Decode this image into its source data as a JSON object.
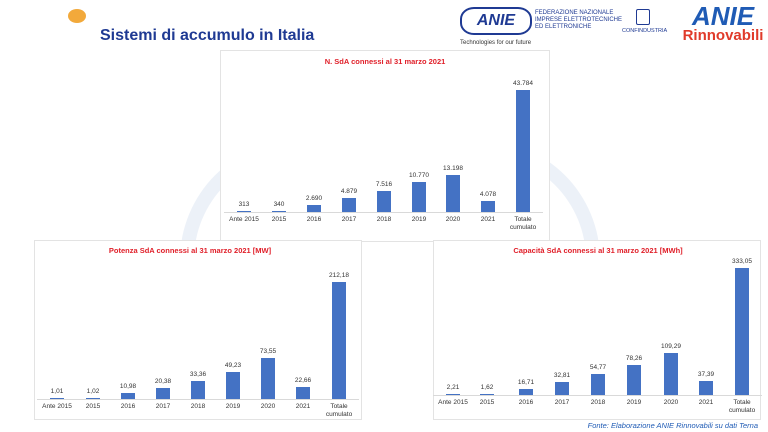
{
  "header": {
    "title": "Sistemi di accumulo in Italia",
    "logos": {
      "anie_federazione": "ANIE",
      "federazione_text": "FEDERAZIONE NAZIONALE IMPRESE ELETTROTECNICHE ED ELETTRONICHE",
      "tagline": "Technologies for our future",
      "confindustria": "CONFINDUSTRIA",
      "anie_rinnovabili": "ANIE Rinnovabili"
    }
  },
  "colors": {
    "bar": "#4472c4",
    "chart_title": "#e0202a",
    "page_title": "#1f3a93"
  },
  "chart_data": [
    {
      "type": "bar",
      "title": "N. SdA connessi al 31 marzo 2021",
      "categories": [
        "Ante 2015",
        "2015",
        "2016",
        "2017",
        "2018",
        "2019",
        "2020",
        "2021",
        "Totale cumulato"
      ],
      "values": [
        313,
        340,
        2690,
        4879,
        7516,
        10770,
        13198,
        4078,
        43784
      ],
      "labels": [
        "313",
        "340",
        "2.690",
        "4.879",
        "7.516",
        "10.770",
        "13.198",
        "4.078",
        "43.784"
      ],
      "grid": false
    },
    {
      "type": "bar",
      "title": "Potenza SdA connessi al 31 marzo 2021 [MW]",
      "categories": [
        "Ante 2015",
        "2015",
        "2016",
        "2017",
        "2018",
        "2019",
        "2020",
        "2021",
        "Totale cumulato"
      ],
      "values": [
        1.01,
        1.02,
        10.98,
        20.38,
        33.36,
        49.23,
        73.55,
        22.66,
        212.18
      ],
      "labels": [
        "1,01",
        "1,02",
        "10,98",
        "20,38",
        "33,36",
        "49,23",
        "73,55",
        "22,66",
        "212,18"
      ],
      "grid": false
    },
    {
      "type": "bar",
      "title": "Capacità SdA connessi al 31 marzo 2021 [MWh]",
      "categories": [
        "Ante 2015",
        "2015",
        "2016",
        "2017",
        "2018",
        "2019",
        "2020",
        "2021",
        "Totale cumulato"
      ],
      "values": [
        2.21,
        1.62,
        16.71,
        32.81,
        54.77,
        78.26,
        109.29,
        37.39,
        333.05
      ],
      "labels": [
        "2,21",
        "1,62",
        "16,71",
        "32,81",
        "54,77",
        "78,26",
        "109,29",
        "37,39",
        "333,05"
      ],
      "grid": false
    }
  ],
  "footer": {
    "source": "Fonte: Elaborazione ANIE Rinnovabili su dati Terna"
  }
}
